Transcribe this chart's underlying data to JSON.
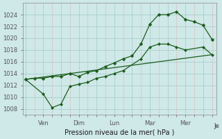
{
  "title": "",
  "xlabel": "Pression niveau de la mer( hPa )",
  "ylabel": "",
  "bg_color": "#cfe8e8",
  "grid_color_major": "#aacece",
  "grid_color_minor": "#ddb8b8",
  "line_color": "#1a5c1a",
  "ylim": [
    1007,
    1026
  ],
  "yticks": [
    1008,
    1010,
    1012,
    1014,
    1016,
    1018,
    1020,
    1022,
    1024
  ],
  "x_major_ticks": [
    0,
    2,
    4,
    6,
    8,
    10,
    12,
    14,
    16,
    18,
    20
  ],
  "x_major_labels": [
    "",
    "Ven",
    "",
    "Dim",
    "",
    "Lun",
    "",
    "Mar",
    "",
    "Mer",
    ""
  ],
  "xlim": [
    -0.3,
    21.5
  ],
  "series1_x": [
    0,
    1,
    2,
    3,
    4,
    5,
    6,
    7,
    8,
    9,
    10,
    11,
    12,
    13,
    14,
    15,
    16,
    17,
    18,
    19,
    20,
    21
  ],
  "series1_y": [
    1013.0,
    1013.2,
    1013.2,
    1013.5,
    1013.5,
    1014.0,
    1013.5,
    1014.2,
    1014.5,
    1015.2,
    1015.8,
    1016.5,
    1017.0,
    1019.0,
    1022.4,
    1024.0,
    1024.0,
    1024.5,
    1023.2,
    1022.8,
    1022.2,
    1019.8
  ],
  "series2_x": [
    0,
    2,
    3,
    4,
    5,
    6,
    7,
    8,
    9,
    10,
    11,
    13,
    14,
    15,
    16,
    17,
    18,
    20,
    21
  ],
  "series2_y": [
    1013.0,
    1010.5,
    1008.2,
    1008.8,
    1011.8,
    1012.2,
    1012.5,
    1013.2,
    1013.5,
    1014.0,
    1014.5,
    1016.5,
    1018.5,
    1019.0,
    1019.0,
    1018.5,
    1018.0,
    1018.5,
    1017.2
  ],
  "series3_x": [
    0,
    21
  ],
  "series3_y": [
    1013.0,
    1017.2
  ]
}
